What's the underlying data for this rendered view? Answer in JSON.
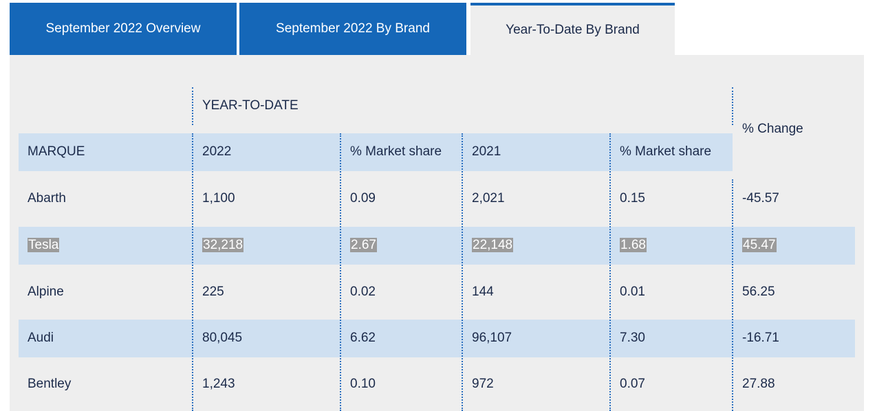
{
  "tabs": [
    {
      "label": "September 2022 Overview",
      "active": false
    },
    {
      "label": "September 2022 By Brand",
      "active": false
    },
    {
      "label": "Year-To-Date By Brand",
      "active": true
    }
  ],
  "table": {
    "group_header": "YEAR-TO-DATE",
    "change_header": "% Change",
    "columns": [
      "MARQUE",
      "2022",
      "% Market share",
      "2021",
      "% Market share"
    ],
    "rows": [
      {
        "marque": "Abarth",
        "y2022": "1,100",
        "share2022": "0.09",
        "y2021": "2,021",
        "share2021": "0.15",
        "change": "-45.57",
        "highlight": false
      },
      {
        "marque": "Tesla",
        "y2022": "32,218",
        "share2022": "2.67",
        "y2021": "22,148",
        "share2021": "1.68",
        "change": "45.47",
        "highlight": true
      },
      {
        "marque": "Alpine",
        "y2022": "225",
        "share2022": "0.02",
        "y2021": "144",
        "share2021": "0.01",
        "change": "56.25",
        "highlight": false
      },
      {
        "marque": "Audi",
        "y2022": "80,045",
        "share2022": "6.62",
        "y2021": "96,107",
        "share2021": "7.30",
        "change": "-16.71",
        "highlight": false
      },
      {
        "marque": "Bentley",
        "y2022": "1,243",
        "share2022": "0.10",
        "y2021": "972",
        "share2021": "0.07",
        "change": "27.88",
        "highlight": false
      }
    ]
  },
  "colors": {
    "tab_blue": "#1567b8",
    "band_blue": "#cfe0f1",
    "panel_gray": "#eeeeee",
    "selection_gray": "#9b9b9b"
  }
}
